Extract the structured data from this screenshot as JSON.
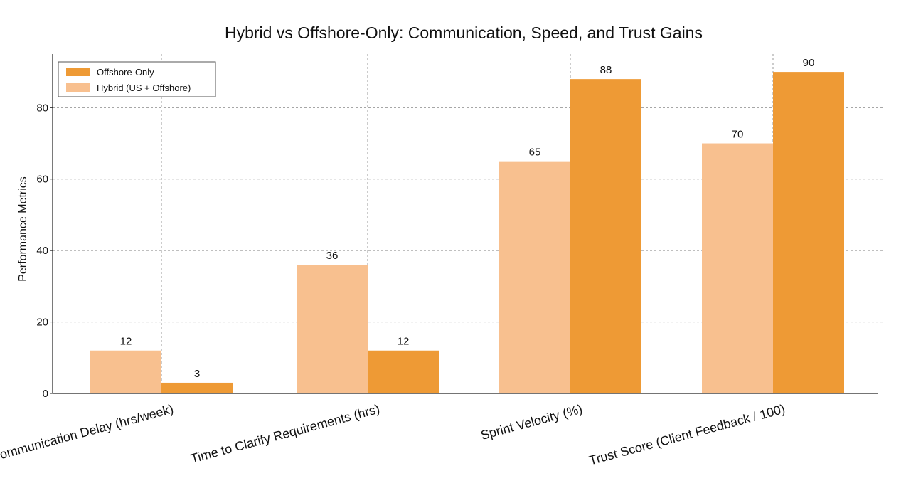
{
  "chart_data": {
    "type": "bar",
    "title": "Hybrid vs Offshore-Only: Communication, Speed, and Trust Gains",
    "xlabel": "",
    "ylabel": "Performance Metrics",
    "categories": [
      "Communication Delay (hrs/week)",
      "Time to Clarify Requirements (hrs)",
      "Sprint Velocity (%)",
      "Trust Score (Client Feedback / 100)"
    ],
    "series": [
      {
        "name": "Hybrid (US + Offshore)",
        "values": [
          12,
          36,
          65,
          70
        ],
        "color": "#F8C08F"
      },
      {
        "name": "Offshore-Only",
        "values": [
          3,
          12,
          88,
          90
        ],
        "color": "#EE9A35"
      }
    ],
    "data_labels": [
      [
        "12",
        "36",
        "65",
        "70"
      ],
      [
        "3",
        "12",
        "88",
        "90"
      ]
    ],
    "yticks": [
      0,
      20,
      40,
      60,
      80
    ],
    "ylim": [
      0,
      95
    ],
    "grid": true,
    "legend_position": "top-left",
    "legend_entries": [
      "Offshore-Only",
      "Hybrid (US + Offshore)"
    ]
  }
}
